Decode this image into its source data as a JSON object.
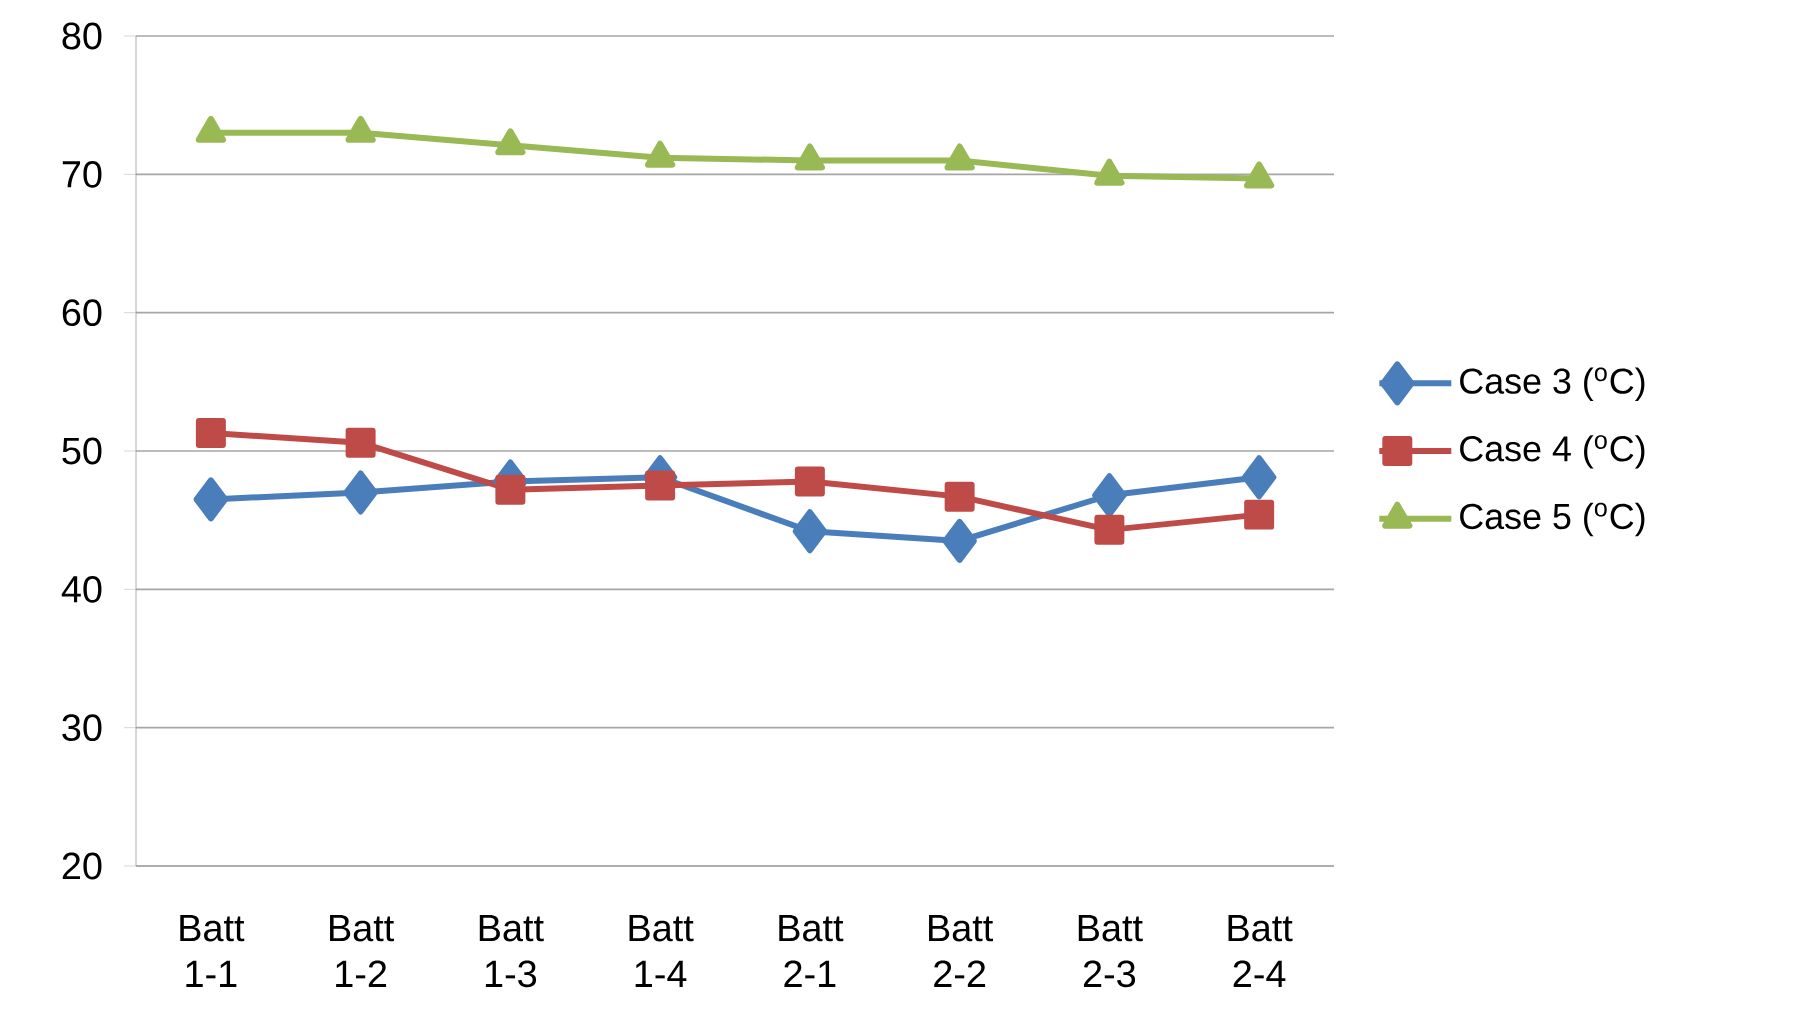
{
  "chart_data": {
    "type": "line",
    "categories": [
      "Batt 1-1",
      "Batt 1-2",
      "Batt 1-3",
      "Batt 1-4",
      "Batt 2-1",
      "Batt 2-2",
      "Batt 2-3",
      "Batt 2-4"
    ],
    "series": [
      {
        "name": "Case 3 ($^{o}$C)",
        "color": "#4a7ebb",
        "marker": "diamond",
        "values": [
          46.5,
          47.0,
          47.8,
          48.1,
          44.2,
          43.5,
          46.8,
          48.1
        ]
      },
      {
        "name": "Case 4 ($^{o}$C)",
        "color": "#be4b48",
        "marker": "square",
        "values": [
          51.3,
          50.6,
          47.2,
          47.5,
          47.8,
          46.7,
          44.3,
          45.4
        ]
      },
      {
        "name": "Case 5 ($^{o}$C)",
        "color": "#98b954",
        "marker": "triangle",
        "values": [
          73.0,
          73.0,
          72.1,
          71.2,
          71.0,
          71.0,
          69.9,
          69.7
        ]
      }
    ],
    "ylim": [
      20,
      80
    ],
    "yticks": [
      20,
      30,
      40,
      50,
      60,
      70,
      80
    ],
    "grid": "y",
    "legend": "right"
  }
}
